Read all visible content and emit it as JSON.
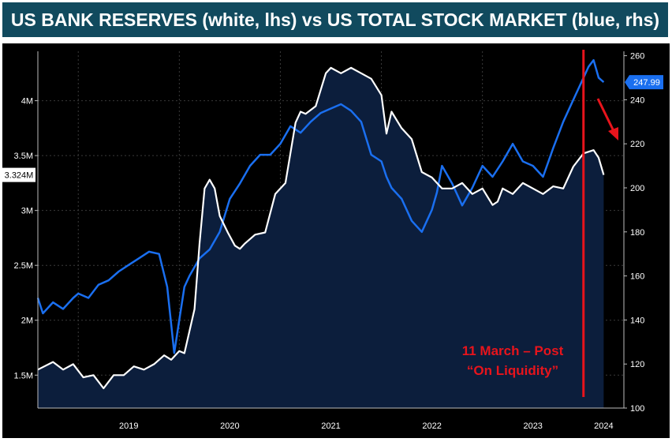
{
  "page": {
    "title": "US BANK RESERVES (white, lhs) vs US TOTAL STOCK MARKET (blue, rhs)"
  },
  "colors": {
    "title_bg": "#114a5e",
    "plot_bg": "#000000",
    "area_fill": "#0c1e3c",
    "reserves_line": "#ffffff",
    "stock_line": "#1a6ff0",
    "annotation": "#e8141c"
  },
  "chart_data": {
    "type": "line",
    "title": "US BANK RESERVES (white, lhs) vs US TOTAL STOCK MARKET (blue, rhs)",
    "x_unit": "year (decimal)",
    "xlim": [
      2018.6,
      2024.4
    ],
    "x_tick_labels": [
      "2019",
      "2020",
      "2021",
      "2022",
      "2023",
      "2024"
    ],
    "x_tick_positions": [
      2019.5,
      2020.5,
      2021.5,
      2022.5,
      2023.5,
      2024.2
    ],
    "year_boundaries": [
      2019,
      2020,
      2021,
      2022,
      2023,
      2024
    ],
    "y_left": {
      "min": 1.2,
      "max": 4.45,
      "ticks": [
        1.5,
        2,
        2.5,
        3,
        3.5,
        4
      ],
      "tick_labels": [
        "1.5M",
        "2M",
        "2.5M",
        "3M",
        "3.5M",
        "4M"
      ]
    },
    "y_right": {
      "min": 100,
      "max": 262,
      "ticks": [
        100,
        120,
        140,
        160,
        180,
        200,
        220,
        240,
        260
      ],
      "tick_labels": [
        "100",
        "120",
        "140",
        "160",
        "180",
        "200",
        "220",
        "240",
        "260"
      ]
    },
    "last_value_labels": {
      "left": "3.324M",
      "right": "247.99"
    },
    "grid": true,
    "series": [
      {
        "axis": "left",
        "x": [
          2018.6,
          2018.75,
          2018.85,
          2018.95,
          2019.05,
          2019.15,
          2019.25,
          2019.35,
          2019.45,
          2019.55,
          2019.65,
          2019.75,
          2019.85,
          2019.92,
          2020.0,
          2020.05,
          2020.15,
          2020.2,
          2020.25,
          2020.3,
          2020.35,
          2020.4,
          2020.48,
          2020.55,
          2020.6,
          2020.65,
          2020.75,
          2020.85,
          2020.95,
          2021.05,
          2021.15,
          2021.2,
          2021.25,
          2021.35,
          2021.45,
          2021.5,
          2021.6,
          2021.7,
          2021.8,
          2021.9,
          2022.0,
          2022.05,
          2022.1,
          2022.2,
          2022.3,
          2022.4,
          2022.5,
          2022.6,
          2022.7,
          2022.8,
          2022.9,
          2023.0,
          2023.1,
          2023.15,
          2023.2,
          2023.3,
          2023.4,
          2023.5,
          2023.6,
          2023.7,
          2023.8,
          2023.9,
          2024.0,
          2024.1,
          2024.15,
          2024.2
        ],
        "values": [
          1.55,
          1.62,
          1.55,
          1.6,
          1.48,
          1.5,
          1.38,
          1.5,
          1.5,
          1.58,
          1.55,
          1.6,
          1.68,
          1.64,
          1.72,
          1.7,
          2.1,
          2.7,
          3.2,
          3.28,
          3.2,
          2.95,
          2.8,
          2.68,
          2.65,
          2.7,
          2.78,
          2.8,
          3.15,
          3.25,
          3.8,
          3.9,
          3.88,
          3.95,
          4.25,
          4.3,
          4.25,
          4.3,
          4.25,
          4.2,
          4.05,
          3.7,
          3.9,
          3.75,
          3.65,
          3.35,
          3.3,
          3.2,
          3.2,
          3.25,
          3.15,
          3.2,
          3.05,
          3.08,
          3.2,
          3.15,
          3.25,
          3.2,
          3.15,
          3.22,
          3.2,
          3.4,
          3.52,
          3.55,
          3.48,
          3.324
        ]
      },
      {
        "axis": "right",
        "x": [
          2018.6,
          2018.65,
          2018.75,
          2018.85,
          2018.95,
          2019.0,
          2019.1,
          2019.2,
          2019.3,
          2019.4,
          2019.5,
          2019.6,
          2019.7,
          2019.8,
          2019.88,
          2019.95,
          2020.0,
          2020.05,
          2020.1,
          2020.2,
          2020.3,
          2020.4,
          2020.5,
          2020.6,
          2020.7,
          2020.8,
          2020.9,
          2021.0,
          2021.1,
          2021.2,
          2021.3,
          2021.4,
          2021.5,
          2021.6,
          2021.7,
          2021.8,
          2021.9,
          2022.0,
          2022.05,
          2022.1,
          2022.2,
          2022.3,
          2022.4,
          2022.5,
          2022.55,
          2022.6,
          2022.7,
          2022.8,
          2022.9,
          2023.0,
          2023.1,
          2023.2,
          2023.3,
          2023.4,
          2023.5,
          2023.6,
          2023.7,
          2023.8,
          2023.9,
          2024.0,
          2024.05,
          2024.1,
          2024.15,
          2024.2
        ],
        "values": [
          150,
          143,
          148,
          145,
          150,
          152,
          150,
          156,
          158,
          162,
          165,
          168,
          171,
          170,
          155,
          125,
          140,
          155,
          160,
          168,
          172,
          180,
          195,
          202,
          210,
          215,
          215,
          220,
          228,
          225,
          230,
          234,
          236,
          238,
          235,
          230,
          215,
          212,
          205,
          200,
          195,
          185,
          180,
          190,
          198,
          210,
          202,
          192,
          200,
          210,
          205,
          212,
          220,
          212,
          210,
          205,
          218,
          230,
          240,
          250,
          255,
          258,
          250,
          247.99
        ]
      }
    ],
    "annotation": {
      "text_line1": "11 March – Post",
      "text_line2": "“On Liquidity”",
      "x": 2024.0
    }
  }
}
